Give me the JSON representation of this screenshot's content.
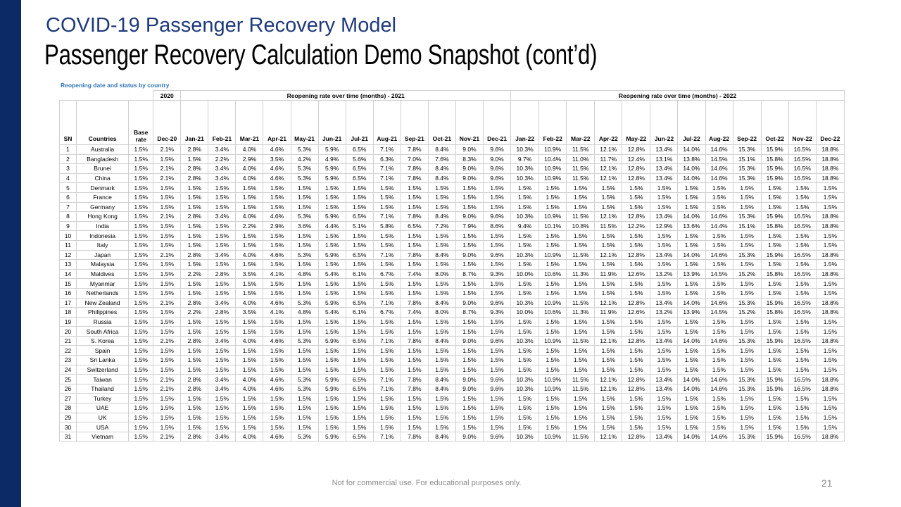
{
  "slide": {
    "subtitle": "COVID-19 Passenger Recovery Model",
    "title": "Passenger Recovery Calculation Demo Snapshot (cont’d)",
    "caption": "Reopening date and status by country",
    "footer": "Not for commercial use. For educational purposes only.",
    "page_number": "21",
    "accent_color": "#0b2a66",
    "subtitle_color": "#1f3a7a",
    "caption_color": "#2e74b5"
  },
  "table": {
    "group_headers": {
      "y2020": "2020",
      "y2021": "Reopening rate over time (months) - 2021",
      "y2022": "Reopening rate over time (months) - 2022"
    },
    "columns": [
      "SN",
      "Countries",
      "Base rate",
      "Dec-20",
      "Jan-21",
      "Feb-21",
      "Mar-21",
      "Apr-21",
      "May-21",
      "Jun-21",
      "Jul-21",
      "Aug-21",
      "Sep-21",
      "Oct-21",
      "Nov-21",
      "Dec-21",
      "Jan-22",
      "Feb-22",
      "Mar-22",
      "Apr-22",
      "May-22",
      "Jun-22",
      "Jul-22",
      "Aug-22",
      "Sep-22",
      "Oct-22",
      "Nov-22",
      "Dec-22"
    ],
    "rows": [
      [
        "1",
        "Australia",
        "1.5%",
        "2.1%",
        "2.8%",
        "3.4%",
        "4.0%",
        "4.6%",
        "5.3%",
        "5.9%",
        "6.5%",
        "7.1%",
        "7.8%",
        "8.4%",
        "9.0%",
        "9.6%",
        "10.3%",
        "10.9%",
        "11.5%",
        "12.1%",
        "12.8%",
        "13.4%",
        "14.0%",
        "14.6%",
        "15.3%",
        "15.9%",
        "16.5%",
        "18.8%"
      ],
      [
        "2",
        "Bangladesh",
        "1.5%",
        "1.5%",
        "1.5%",
        "2.2%",
        "2.9%",
        "3.5%",
        "4.2%",
        "4.9%",
        "5.6%",
        "6.3%",
        "7.0%",
        "7.6%",
        "8.3%",
        "9.0%",
        "9.7%",
        "10.4%",
        "11.0%",
        "11.7%",
        "12.4%",
        "13.1%",
        "13.8%",
        "14.5%",
        "15.1%",
        "15.8%",
        "16.5%",
        "18.8%"
      ],
      [
        "3",
        "Brunei",
        "1.5%",
        "2.1%",
        "2.8%",
        "3.4%",
        "4.0%",
        "4.6%",
        "5.3%",
        "5.9%",
        "6.5%",
        "7.1%",
        "7.8%",
        "8.4%",
        "9.0%",
        "9.6%",
        "10.3%",
        "10.9%",
        "11.5%",
        "12.1%",
        "12.8%",
        "13.4%",
        "14.0%",
        "14.6%",
        "15.3%",
        "15.9%",
        "16.5%",
        "18.8%"
      ],
      [
        "4",
        "China",
        "1.5%",
        "2.1%",
        "2.8%",
        "3.4%",
        "4.0%",
        "4.6%",
        "5.3%",
        "5.9%",
        "6.5%",
        "7.1%",
        "7.8%",
        "8.4%",
        "9.0%",
        "9.6%",
        "10.3%",
        "10.9%",
        "11.5%",
        "12.1%",
        "12.8%",
        "13.4%",
        "14.0%",
        "14.6%",
        "15.3%",
        "15.9%",
        "16.5%",
        "18.8%"
      ],
      [
        "5",
        "Denmark",
        "1.5%",
        "1.5%",
        "1.5%",
        "1.5%",
        "1.5%",
        "1.5%",
        "1.5%",
        "1.5%",
        "1.5%",
        "1.5%",
        "1.5%",
        "1.5%",
        "1.5%",
        "1.5%",
        "1.5%",
        "1.5%",
        "1.5%",
        "1.5%",
        "1.5%",
        "1.5%",
        "1.5%",
        "1.5%",
        "1.5%",
        "1.5%",
        "1.5%",
        "1.5%"
      ],
      [
        "6",
        "France",
        "1.5%",
        "1.5%",
        "1.5%",
        "1.5%",
        "1.5%",
        "1.5%",
        "1.5%",
        "1.5%",
        "1.5%",
        "1.5%",
        "1.5%",
        "1.5%",
        "1.5%",
        "1.5%",
        "1.5%",
        "1.5%",
        "1.5%",
        "1.5%",
        "1.5%",
        "1.5%",
        "1.5%",
        "1.5%",
        "1.5%",
        "1.5%",
        "1.5%",
        "1.5%"
      ],
      [
        "7",
        "Germany",
        "1.5%",
        "1.5%",
        "1.5%",
        "1.5%",
        "1.5%",
        "1.5%",
        "1.5%",
        "1.5%",
        "1.5%",
        "1.5%",
        "1.5%",
        "1.5%",
        "1.5%",
        "1.5%",
        "1.5%",
        "1.5%",
        "1.5%",
        "1.5%",
        "1.5%",
        "1.5%",
        "1.5%",
        "1.5%",
        "1.5%",
        "1.5%",
        "1.5%",
        "1.5%"
      ],
      [
        "8",
        "Hong Kong",
        "1.5%",
        "2.1%",
        "2.8%",
        "3.4%",
        "4.0%",
        "4.6%",
        "5.3%",
        "5.9%",
        "6.5%",
        "7.1%",
        "7.8%",
        "8.4%",
        "9.0%",
        "9.6%",
        "10.3%",
        "10.9%",
        "11.5%",
        "12.1%",
        "12.8%",
        "13.4%",
        "14.0%",
        "14.6%",
        "15.3%",
        "15.9%",
        "16.5%",
        "18.8%"
      ],
      [
        "9",
        "India",
        "1.5%",
        "1.5%",
        "1.5%",
        "1.5%",
        "2.2%",
        "2.9%",
        "3.6%",
        "4.4%",
        "5.1%",
        "5.8%",
        "6.5%",
        "7.2%",
        "7.9%",
        "8.6%",
        "9.4%",
        "10.1%",
        "10.8%",
        "11.5%",
        "12.2%",
        "12.9%",
        "13.6%",
        "14.4%",
        "15.1%",
        "15.8%",
        "16.5%",
        "18.8%"
      ],
      [
        "10",
        "Indonesia",
        "1.5%",
        "1.5%",
        "1.5%",
        "1.5%",
        "1.5%",
        "1.5%",
        "1.5%",
        "1.5%",
        "1.5%",
        "1.5%",
        "1.5%",
        "1.5%",
        "1.5%",
        "1.5%",
        "1.5%",
        "1.5%",
        "1.5%",
        "1.5%",
        "1.5%",
        "1.5%",
        "1.5%",
        "1.5%",
        "1.5%",
        "1.5%",
        "1.5%",
        "1.5%"
      ],
      [
        "11",
        "Italy",
        "1.5%",
        "1.5%",
        "1.5%",
        "1.5%",
        "1.5%",
        "1.5%",
        "1.5%",
        "1.5%",
        "1.5%",
        "1.5%",
        "1.5%",
        "1.5%",
        "1.5%",
        "1.5%",
        "1.5%",
        "1.5%",
        "1.5%",
        "1.5%",
        "1.5%",
        "1.5%",
        "1.5%",
        "1.5%",
        "1.5%",
        "1.5%",
        "1.5%",
        "1.5%"
      ],
      [
        "12",
        "Japan",
        "1.5%",
        "2.1%",
        "2.8%",
        "3.4%",
        "4.0%",
        "4.6%",
        "5.3%",
        "5.9%",
        "6.5%",
        "7.1%",
        "7.8%",
        "8.4%",
        "9.0%",
        "9.6%",
        "10.3%",
        "10.9%",
        "11.5%",
        "12.1%",
        "12.8%",
        "13.4%",
        "14.0%",
        "14.6%",
        "15.3%",
        "15.9%",
        "16.5%",
        "18.8%"
      ],
      [
        "13",
        "Malaysia",
        "1.5%",
        "1.5%",
        "1.5%",
        "1.5%",
        "1.5%",
        "1.5%",
        "1.5%",
        "1.5%",
        "1.5%",
        "1.5%",
        "1.5%",
        "1.5%",
        "1.5%",
        "1.5%",
        "1.5%",
        "1.5%",
        "1.5%",
        "1.5%",
        "1.5%",
        "1.5%",
        "1.5%",
        "1.5%",
        "1.5%",
        "1.5%",
        "1.5%",
        "1.5%"
      ],
      [
        "14",
        "Maldives",
        "1.5%",
        "1.5%",
        "2.2%",
        "2.8%",
        "3.5%",
        "4.1%",
        "4.8%",
        "5.4%",
        "6.1%",
        "6.7%",
        "7.4%",
        "8.0%",
        "8.7%",
        "9.3%",
        "10.0%",
        "10.6%",
        "11.3%",
        "11.9%",
        "12.6%",
        "13.2%",
        "13.9%",
        "14.5%",
        "15.2%",
        "15.8%",
        "16.5%",
        "18.8%"
      ],
      [
        "15",
        "Myanmar",
        "1.5%",
        "1.5%",
        "1.5%",
        "1.5%",
        "1.5%",
        "1.5%",
        "1.5%",
        "1.5%",
        "1.5%",
        "1.5%",
        "1.5%",
        "1.5%",
        "1.5%",
        "1.5%",
        "1.5%",
        "1.5%",
        "1.5%",
        "1.5%",
        "1.5%",
        "1.5%",
        "1.5%",
        "1.5%",
        "1.5%",
        "1.5%",
        "1.5%",
        "1.5%"
      ],
      [
        "16",
        "Netherlands",
        "1.5%",
        "1.5%",
        "1.5%",
        "1.5%",
        "1.5%",
        "1.5%",
        "1.5%",
        "1.5%",
        "1.5%",
        "1.5%",
        "1.5%",
        "1.5%",
        "1.5%",
        "1.5%",
        "1.5%",
        "1.5%",
        "1.5%",
        "1.5%",
        "1.5%",
        "1.5%",
        "1.5%",
        "1.5%",
        "1.5%",
        "1.5%",
        "1.5%",
        "1.5%"
      ],
      [
        "17",
        "New Zealand",
        "1.5%",
        "2.1%",
        "2.8%",
        "3.4%",
        "4.0%",
        "4.6%",
        "5.3%",
        "5.9%",
        "6.5%",
        "7.1%",
        "7.8%",
        "8.4%",
        "9.0%",
        "9.6%",
        "10.3%",
        "10.9%",
        "11.5%",
        "12.1%",
        "12.8%",
        "13.4%",
        "14.0%",
        "14.6%",
        "15.3%",
        "15.9%",
        "16.5%",
        "18.8%"
      ],
      [
        "18",
        "Philippines",
        "1.5%",
        "1.5%",
        "2.2%",
        "2.8%",
        "3.5%",
        "4.1%",
        "4.8%",
        "5.4%",
        "6.1%",
        "6.7%",
        "7.4%",
        "8.0%",
        "8.7%",
        "9.3%",
        "10.0%",
        "10.6%",
        "11.3%",
        "11.9%",
        "12.6%",
        "13.2%",
        "13.9%",
        "14.5%",
        "15.2%",
        "15.8%",
        "16.5%",
        "18.8%"
      ],
      [
        "19",
        "Russia",
        "1.5%",
        "1.5%",
        "1.5%",
        "1.5%",
        "1.5%",
        "1.5%",
        "1.5%",
        "1.5%",
        "1.5%",
        "1.5%",
        "1.5%",
        "1.5%",
        "1.5%",
        "1.5%",
        "1.5%",
        "1.5%",
        "1.5%",
        "1.5%",
        "1.5%",
        "1.5%",
        "1.5%",
        "1.5%",
        "1.5%",
        "1.5%",
        "1.5%",
        "1.5%"
      ],
      [
        "20",
        "South Africa",
        "1.5%",
        "1.5%",
        "1.5%",
        "1.5%",
        "1.5%",
        "1.5%",
        "1.5%",
        "1.5%",
        "1.5%",
        "1.5%",
        "1.5%",
        "1.5%",
        "1.5%",
        "1.5%",
        "1.5%",
        "1.5%",
        "1.5%",
        "1.5%",
        "1.5%",
        "1.5%",
        "1.5%",
        "1.5%",
        "1.5%",
        "1.5%",
        "1.5%",
        "1.5%"
      ],
      [
        "21",
        "S. Korea",
        "1.5%",
        "2.1%",
        "2.8%",
        "3.4%",
        "4.0%",
        "4.6%",
        "5.3%",
        "5.9%",
        "6.5%",
        "7.1%",
        "7.8%",
        "8.4%",
        "9.0%",
        "9.6%",
        "10.3%",
        "10.9%",
        "11.5%",
        "12.1%",
        "12.8%",
        "13.4%",
        "14.0%",
        "14.6%",
        "15.3%",
        "15.9%",
        "16.5%",
        "18.8%"
      ],
      [
        "22",
        "Spain",
        "1.5%",
        "1.5%",
        "1.5%",
        "1.5%",
        "1.5%",
        "1.5%",
        "1.5%",
        "1.5%",
        "1.5%",
        "1.5%",
        "1.5%",
        "1.5%",
        "1.5%",
        "1.5%",
        "1.5%",
        "1.5%",
        "1.5%",
        "1.5%",
        "1.5%",
        "1.5%",
        "1.5%",
        "1.5%",
        "1.5%",
        "1.5%",
        "1.5%",
        "1.5%"
      ],
      [
        "23",
        "Sri Lanka",
        "1.5%",
        "1.5%",
        "1.5%",
        "1.5%",
        "1.5%",
        "1.5%",
        "1.5%",
        "1.5%",
        "1.5%",
        "1.5%",
        "1.5%",
        "1.5%",
        "1.5%",
        "1.5%",
        "1.5%",
        "1.5%",
        "1.5%",
        "1.5%",
        "1.5%",
        "1.5%",
        "1.5%",
        "1.5%",
        "1.5%",
        "1.5%",
        "1.5%",
        "1.5%"
      ],
      [
        "24",
        "Switzerland",
        "1.5%",
        "1.5%",
        "1.5%",
        "1.5%",
        "1.5%",
        "1.5%",
        "1.5%",
        "1.5%",
        "1.5%",
        "1.5%",
        "1.5%",
        "1.5%",
        "1.5%",
        "1.5%",
        "1.5%",
        "1.5%",
        "1.5%",
        "1.5%",
        "1.5%",
        "1.5%",
        "1.5%",
        "1.5%",
        "1.5%",
        "1.5%",
        "1.5%",
        "1.5%"
      ],
      [
        "25",
        "Taiwan",
        "1.5%",
        "2.1%",
        "2.8%",
        "3.4%",
        "4.0%",
        "4.6%",
        "5.3%",
        "5.9%",
        "6.5%",
        "7.1%",
        "7.8%",
        "8.4%",
        "9.0%",
        "9.6%",
        "10.3%",
        "10.9%",
        "11.5%",
        "12.1%",
        "12.8%",
        "13.4%",
        "14.0%",
        "14.6%",
        "15.3%",
        "15.9%",
        "16.5%",
        "18.8%"
      ],
      [
        "26",
        "Thailand",
        "1.5%",
        "2.1%",
        "2.8%",
        "3.4%",
        "4.0%",
        "4.6%",
        "5.3%",
        "5.9%",
        "6.5%",
        "7.1%",
        "7.8%",
        "8.4%",
        "9.0%",
        "9.6%",
        "10.3%",
        "10.9%",
        "11.5%",
        "12.1%",
        "12.8%",
        "13.4%",
        "14.0%",
        "14.6%",
        "15.3%",
        "15.9%",
        "16.5%",
        "18.8%"
      ],
      [
        "27",
        "Turkey",
        "1.5%",
        "1.5%",
        "1.5%",
        "1.5%",
        "1.5%",
        "1.5%",
        "1.5%",
        "1.5%",
        "1.5%",
        "1.5%",
        "1.5%",
        "1.5%",
        "1.5%",
        "1.5%",
        "1.5%",
        "1.5%",
        "1.5%",
        "1.5%",
        "1.5%",
        "1.5%",
        "1.5%",
        "1.5%",
        "1.5%",
        "1.5%",
        "1.5%",
        "1.5%"
      ],
      [
        "28",
        "UAE",
        "1.5%",
        "1.5%",
        "1.5%",
        "1.5%",
        "1.5%",
        "1.5%",
        "1.5%",
        "1.5%",
        "1.5%",
        "1.5%",
        "1.5%",
        "1.5%",
        "1.5%",
        "1.5%",
        "1.5%",
        "1.5%",
        "1.5%",
        "1.5%",
        "1.5%",
        "1.5%",
        "1.5%",
        "1.5%",
        "1.5%",
        "1.5%",
        "1.5%",
        "1.5%"
      ],
      [
        "29",
        "UK",
        "1.5%",
        "1.5%",
        "1.5%",
        "1.5%",
        "1.5%",
        "1.5%",
        "1.5%",
        "1.5%",
        "1.5%",
        "1.5%",
        "1.5%",
        "1.5%",
        "1.5%",
        "1.5%",
        "1.5%",
        "1.5%",
        "1.5%",
        "1.5%",
        "1.5%",
        "1.5%",
        "1.5%",
        "1.5%",
        "1.5%",
        "1.5%",
        "1.5%",
        "1.5%"
      ],
      [
        "30",
        "USA",
        "1.5%",
        "1.5%",
        "1.5%",
        "1.5%",
        "1.5%",
        "1.5%",
        "1.5%",
        "1.5%",
        "1.5%",
        "1.5%",
        "1.5%",
        "1.5%",
        "1.5%",
        "1.5%",
        "1.5%",
        "1.5%",
        "1.5%",
        "1.5%",
        "1.5%",
        "1.5%",
        "1.5%",
        "1.5%",
        "1.5%",
        "1.5%",
        "1.5%",
        "1.5%"
      ],
      [
        "31",
        "Vietnam",
        "1.5%",
        "2.1%",
        "2.8%",
        "3.4%",
        "4.0%",
        "4.6%",
        "5.3%",
        "5.9%",
        "6.5%",
        "7.1%",
        "7.8%",
        "8.4%",
        "9.0%",
        "9.6%",
        "10.3%",
        "10.9%",
        "11.5%",
        "12.1%",
        "12.8%",
        "13.4%",
        "14.0%",
        "14.6%",
        "15.3%",
        "15.9%",
        "16.5%",
        "18.8%"
      ]
    ]
  }
}
